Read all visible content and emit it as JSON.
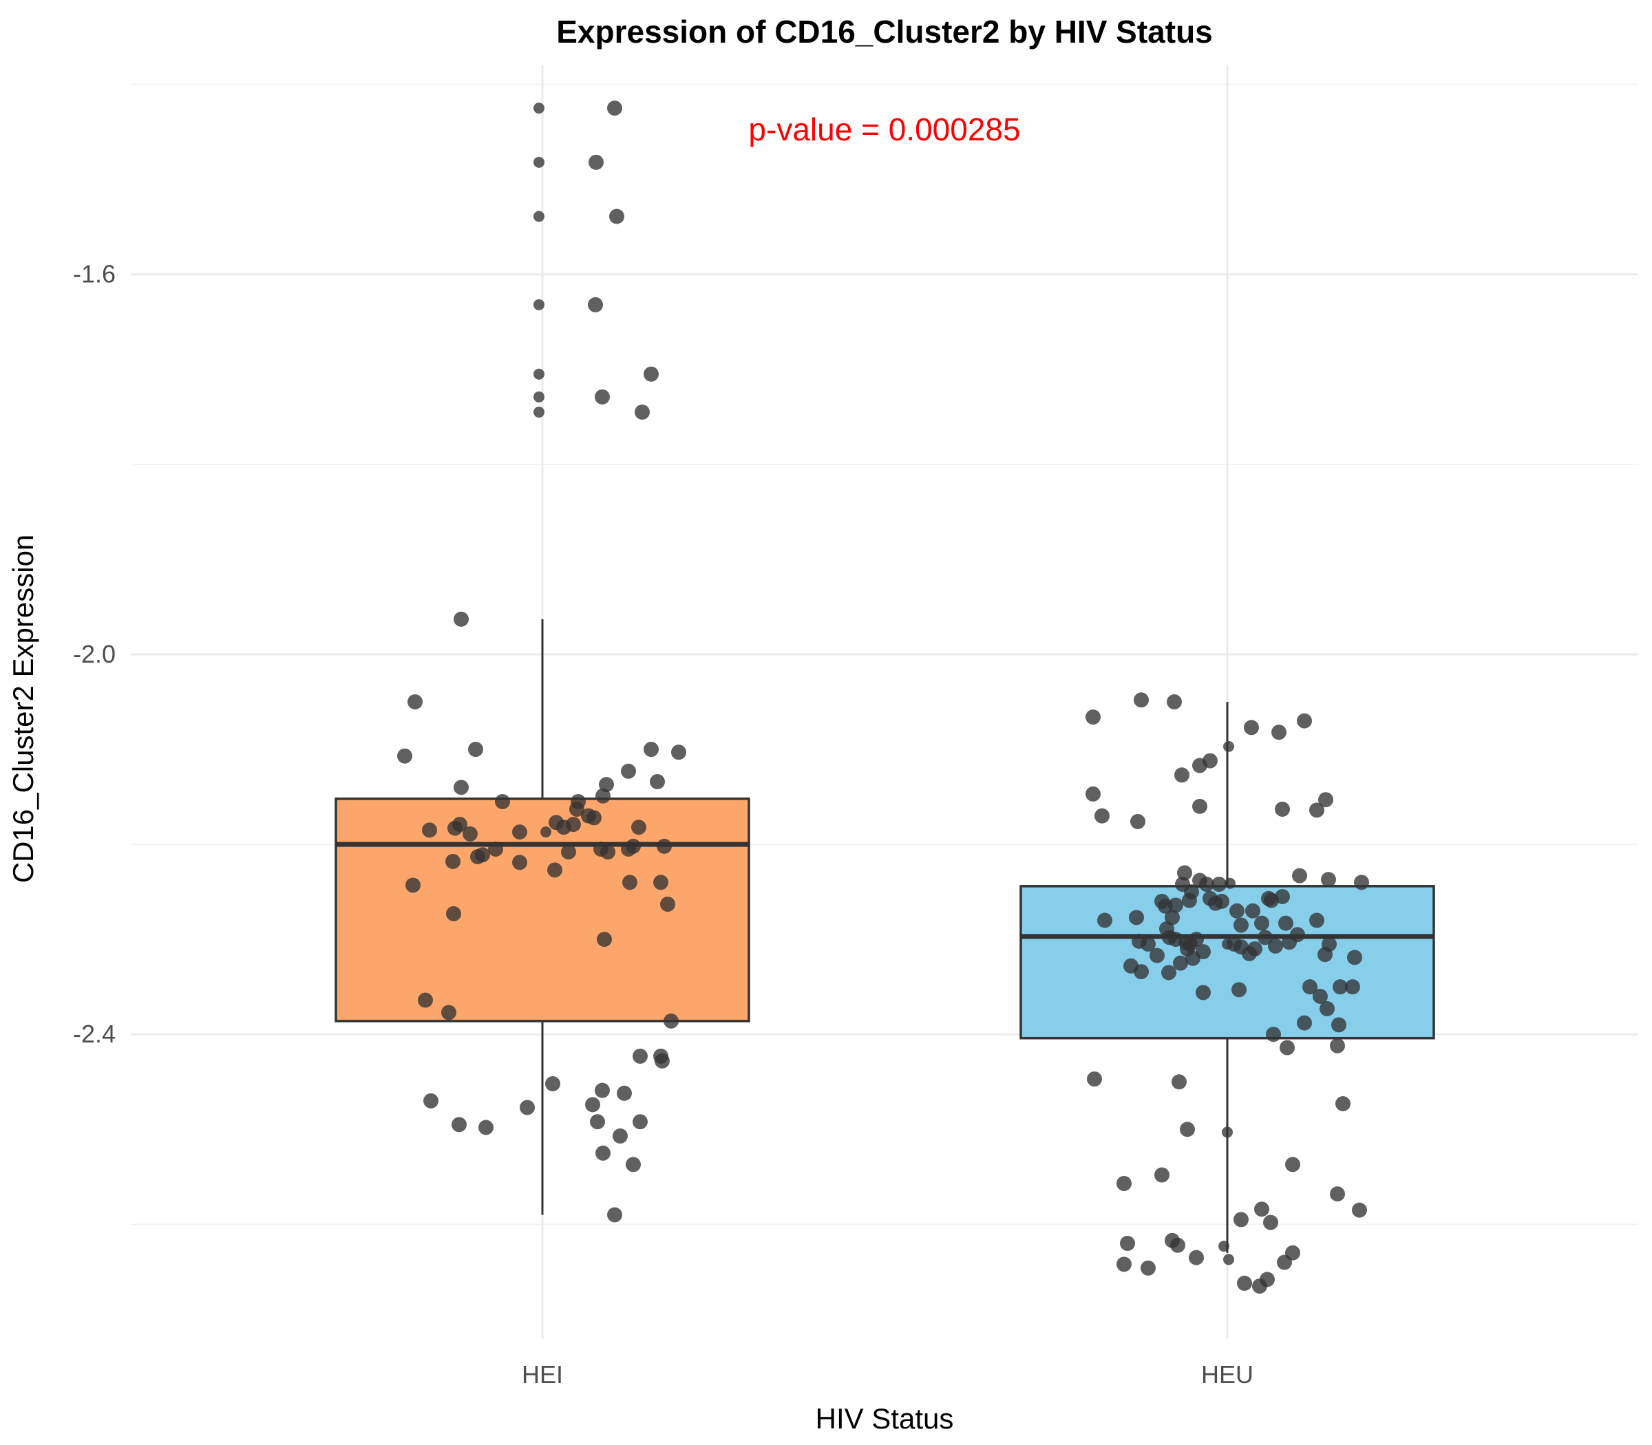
{
  "chart_data": {
    "type": "box",
    "title": "Expression of CD16_Cluster2 by HIV Status",
    "xlabel": "HIV Status",
    "ylabel": "CD16_Cluster2 Expression",
    "categories": [
      "HEI",
      "HEU"
    ],
    "ylim": [
      -2.72,
      -1.38
    ],
    "yticks": [
      -1.6,
      -2.0,
      -2.4
    ],
    "ytick_labels": [
      "-1.6",
      "-2.0",
      "-2.4"
    ],
    "grid": true,
    "annotation": {
      "text": "p-value = 0.000285",
      "color": "#ff0000"
    },
    "colors": {
      "HEI": "#fca66b",
      "HEU": "#87ceeb",
      "points": "#333333",
      "box_outline": "#333333"
    },
    "boxes": [
      {
        "category": "HEI",
        "q1": -2.386,
        "median": -2.2,
        "q3": -2.152,
        "whisker_low": -2.59,
        "whisker_high": -1.963
      },
      {
        "category": "HEU",
        "q1": -2.404,
        "median": -2.297,
        "q3": -2.244,
        "whisker_low": -2.63,
        "whisker_high": -2.05
      }
    ],
    "points": {
      "HEI": [
        [
          -0.005,
          -1.425
        ],
        [
          0.105,
          -1.425
        ],
        [
          -0.005,
          -1.482
        ],
        [
          0.078,
          -1.482
        ],
        [
          -0.005,
          -1.539
        ],
        [
          0.108,
          -1.539
        ],
        [
          -0.005,
          -1.632
        ],
        [
          0.077,
          -1.632
        ],
        [
          -0.005,
          -1.705
        ],
        [
          -0.005,
          -1.729
        ],
        [
          -0.005,
          -1.745
        ],
        [
          0.158,
          -1.705
        ],
        [
          0.087,
          -1.729
        ],
        [
          0.145,
          -1.745
        ],
        [
          -0.118,
          -1.963
        ],
        [
          -0.185,
          -2.05
        ],
        [
          -0.2,
          -2.107
        ],
        [
          -0.097,
          -2.1
        ],
        [
          0.158,
          -2.1
        ],
        [
          0.198,
          -2.103
        ],
        [
          -0.118,
          -2.14
        ],
        [
          -0.058,
          -2.155
        ],
        [
          0.02,
          -2.177
        ],
        [
          0.052,
          -2.155
        ],
        [
          0.088,
          -2.149
        ],
        [
          0.05,
          -2.163
        ],
        [
          0.093,
          -2.137
        ],
        [
          0.125,
          -2.123
        ],
        [
          0.167,
          -2.134
        ],
        [
          -0.164,
          -2.185
        ],
        [
          -0.12,
          -2.179
        ],
        [
          -0.127,
          -2.183
        ],
        [
          -0.105,
          -2.189
        ],
        [
          -0.068,
          -2.205
        ],
        [
          -0.033,
          -2.187
        ],
        [
          0.005,
          -2.187
        ],
        [
          0.067,
          -2.17
        ],
        [
          0.075,
          -2.172
        ],
        [
          0.045,
          -2.179
        ],
        [
          0.031,
          -2.182
        ],
        [
          0.14,
          -2.182
        ],
        [
          -0.13,
          -2.218
        ],
        [
          -0.094,
          -2.213
        ],
        [
          -0.087,
          -2.211
        ],
        [
          -0.033,
          -2.219
        ],
        [
          0.018,
          -2.227
        ],
        [
          0.038,
          -2.208
        ],
        [
          0.085,
          -2.205
        ],
        [
          0.095,
          -2.208
        ],
        [
          0.125,
          -2.205
        ],
        [
          0.132,
          -2.202
        ],
        [
          0.177,
          -2.202
        ],
        [
          -0.188,
          -2.243
        ],
        [
          0.127,
          -2.24
        ],
        [
          0.172,
          -2.24
        ],
        [
          -0.129,
          -2.273
        ],
        [
          0.09,
          -2.3
        ],
        [
          0.182,
          -2.263
        ],
        [
          -0.17,
          -2.364
        ],
        [
          -0.136,
          -2.377
        ],
        [
          0.187,
          -2.386
        ],
        [
          0.142,
          -2.423
        ],
        [
          0.172,
          -2.423
        ],
        [
          0.174,
          -2.428
        ],
        [
          0.015,
          -2.452
        ],
        [
          -0.162,
          -2.47
        ],
        [
          -0.022,
          -2.477
        ],
        [
          0.087,
          -2.459
        ],
        [
          0.119,
          -2.462
        ],
        [
          0.073,
          -2.474
        ],
        [
          -0.121,
          -2.495
        ],
        [
          -0.082,
          -2.498
        ],
        [
          0.08,
          -2.492
        ],
        [
          0.142,
          -2.492
        ],
        [
          0.113,
          -2.507
        ],
        [
          0.088,
          -2.525
        ],
        [
          0.132,
          -2.537
        ],
        [
          0.105,
          -2.59
        ]
      ],
      "HEU": [
        [
          -0.125,
          -2.048
        ],
        [
          -0.195,
          -2.066
        ],
        [
          -0.077,
          -2.05
        ],
        [
          0.035,
          -2.077
        ],
        [
          0.075,
          -2.082
        ],
        [
          0.112,
          -2.07
        ],
        [
          -0.025,
          -2.112
        ],
        [
          0.002,
          -2.097
        ],
        [
          -0.066,
          -2.127
        ],
        [
          -0.04,
          -2.117
        ],
        [
          -0.195,
          -2.147
        ],
        [
          -0.182,
          -2.17
        ],
        [
          -0.13,
          -2.176
        ],
        [
          -0.04,
          -2.16
        ],
        [
          0.08,
          -2.163
        ],
        [
          0.13,
          -2.164
        ],
        [
          0.143,
          -2.153
        ],
        [
          -0.062,
          -2.23
        ],
        [
          -0.065,
          -2.242
        ],
        [
          -0.04,
          -2.238
        ],
        [
          -0.052,
          -2.25
        ],
        [
          -0.03,
          -2.242
        ],
        [
          -0.012,
          -2.242
        ],
        [
          -0.025,
          -2.257
        ],
        [
          -0.008,
          -2.26
        ],
        [
          0.004,
          -2.241
        ],
        [
          -0.075,
          -2.264
        ],
        [
          -0.055,
          -2.259
        ],
        [
          0.105,
          -2.233
        ],
        [
          -0.09,
          -2.265
        ],
        [
          -0.017,
          -2.262
        ],
        [
          0.06,
          -2.257
        ],
        [
          0.08,
          -2.255
        ],
        [
          0.147,
          -2.237
        ],
        [
          0.195,
          -2.24
        ],
        [
          -0.132,
          -2.277
        ],
        [
          -0.178,
          -2.28
        ],
        [
          -0.095,
          -2.26
        ],
        [
          -0.08,
          -2.277
        ],
        [
          0.064,
          -2.259
        ],
        [
          0.014,
          -2.27
        ],
        [
          0.037,
          -2.27
        ],
        [
          0.13,
          -2.28
        ],
        [
          0.085,
          -2.283
        ],
        [
          0.05,
          -2.283
        ],
        [
          0.02,
          -2.285
        ],
        [
          -0.088,
          -2.289
        ],
        [
          -0.084,
          -2.298
        ],
        [
          -0.075,
          -2.3
        ],
        [
          -0.054,
          -2.305
        ],
        [
          -0.128,
          -2.302
        ],
        [
          0.09,
          -2.303
        ],
        [
          0.055,
          -2.298
        ],
        [
          -0.085,
          -2.335
        ],
        [
          -0.045,
          -2.3
        ],
        [
          -0.035,
          -2.313
        ],
        [
          -0.058,
          -2.31
        ],
        [
          0.0,
          -2.305
        ],
        [
          0.01,
          -2.305
        ],
        [
          0.02,
          -2.308
        ],
        [
          0.04,
          -2.31
        ],
        [
          0.07,
          -2.307
        ],
        [
          0.102,
          -2.295
        ],
        [
          0.148,
          -2.305
        ],
        [
          -0.102,
          -2.317
        ],
        [
          -0.115,
          -2.305
        ],
        [
          -0.068,
          -2.325
        ],
        [
          -0.14,
          -2.328
        ],
        [
          -0.125,
          -2.334
        ],
        [
          0.032,
          -2.315
        ],
        [
          0.142,
          -2.316
        ],
        [
          0.185,
          -2.319
        ],
        [
          -0.06,
          -2.303
        ],
        [
          0.017,
          -2.353
        ],
        [
          0.12,
          -2.35
        ],
        [
          0.164,
          -2.35
        ],
        [
          0.182,
          -2.35
        ],
        [
          -0.05,
          -2.32
        ],
        [
          0.135,
          -2.36
        ],
        [
          -0.035,
          -2.356
        ],
        [
          0.112,
          -2.388
        ],
        [
          0.067,
          -2.4
        ],
        [
          0.145,
          -2.373
        ],
        [
          0.087,
          -2.414
        ],
        [
          0.162,
          -2.39
        ],
        [
          0.16,
          -2.412
        ],
        [
          -0.193,
          -2.447
        ],
        [
          -0.07,
          -2.45
        ],
        [
          0.168,
          -2.473
        ],
        [
          0.0,
          -2.503
        ],
        [
          -0.058,
          -2.5
        ],
        [
          0.095,
          -2.537
        ],
        [
          -0.15,
          -2.557
        ],
        [
          -0.095,
          -2.548
        ],
        [
          0.16,
          -2.568
        ],
        [
          0.05,
          -2.584
        ],
        [
          0.02,
          -2.595
        ],
        [
          0.192,
          -2.585
        ],
        [
          -0.145,
          -2.62
        ],
        [
          -0.08,
          -2.617
        ],
        [
          -0.072,
          -2.622
        ],
        [
          0.063,
          -2.598
        ],
        [
          -0.15,
          -2.642
        ],
        [
          -0.115,
          -2.646
        ],
        [
          -0.045,
          -2.635
        ],
        [
          -0.005,
          -2.623
        ],
        [
          0.002,
          -2.637
        ],
        [
          0.083,
          -2.64
        ],
        [
          0.095,
          -2.63
        ],
        [
          0.025,
          -2.662
        ],
        [
          0.047,
          -2.665
        ],
        [
          0.058,
          -2.658
        ]
      ]
    }
  }
}
